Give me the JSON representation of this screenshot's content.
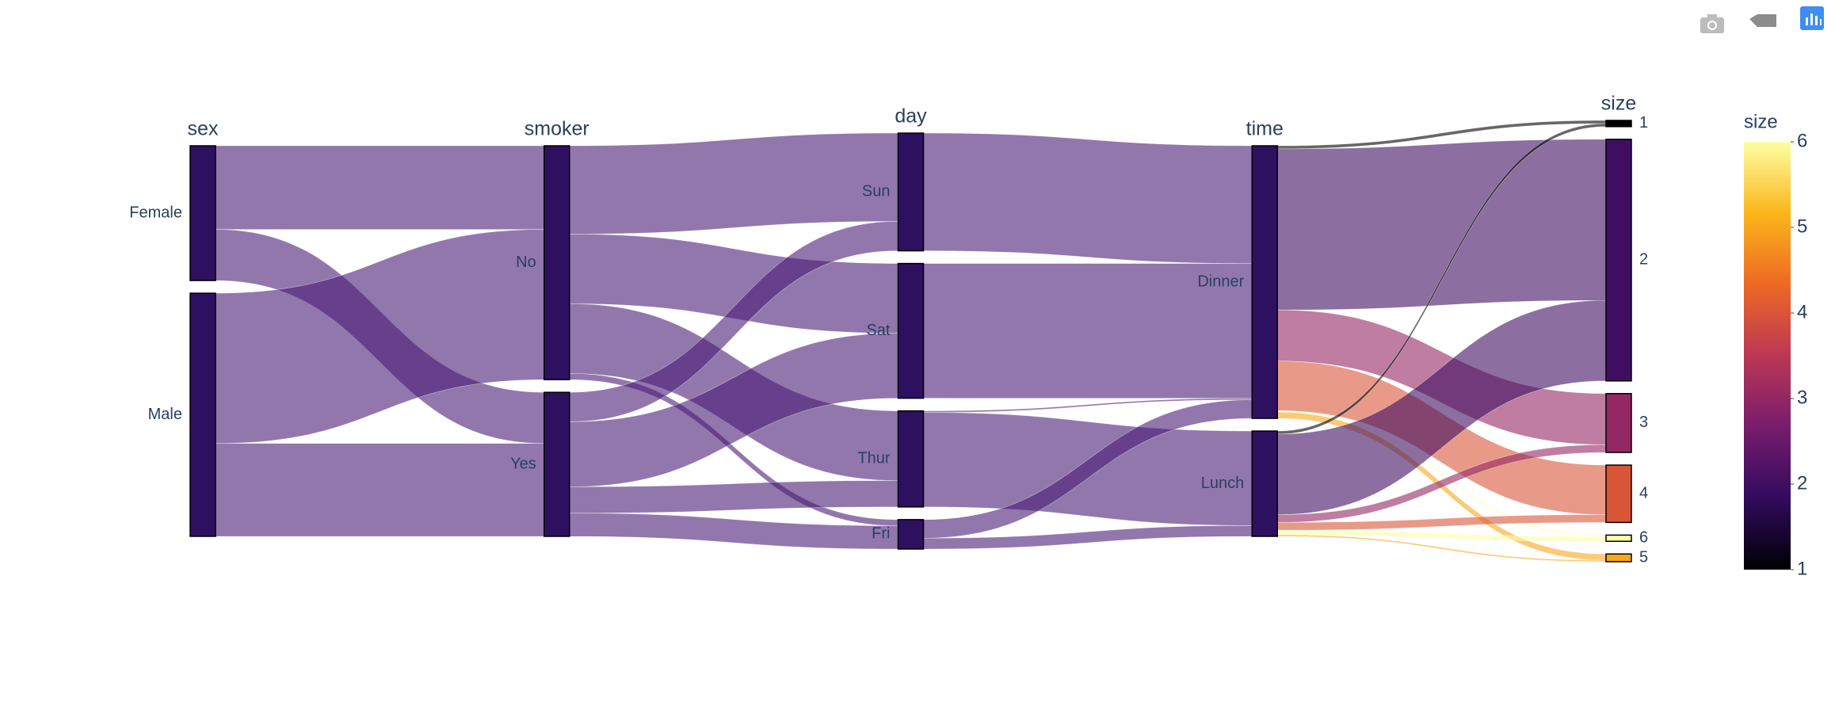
{
  "chart_data": {
    "type": "parcats",
    "dimensions": [
      {
        "label": "sex",
        "categories": [
          "Female",
          "Male"
        ],
        "counts": [
          87,
          157
        ]
      },
      {
        "label": "smoker",
        "categories": [
          "No",
          "Yes"
        ],
        "counts": [
          151,
          93
        ]
      },
      {
        "label": "day",
        "categories": [
          "Sun",
          "Sat",
          "Thur",
          "Fri"
        ],
        "counts": [
          76,
          87,
          62,
          19
        ]
      },
      {
        "label": "time",
        "categories": [
          "Dinner",
          "Lunch"
        ],
        "counts": [
          176,
          68
        ]
      },
      {
        "label": "size",
        "categories": [
          1,
          2,
          3,
          4,
          6,
          5
        ],
        "counts": [
          4,
          156,
          38,
          37,
          4,
          5
        ]
      }
    ],
    "flows": [
      [
        [
          54,
          33
        ],
        [
          97,
          60
        ]
      ],
      [
        [
          57,
          45,
          45,
          4
        ],
        [
          19,
          42,
          17,
          15
        ]
      ],
      [
        [
          76,
          0
        ],
        [
          87,
          0
        ],
        [
          1,
          61
        ],
        [
          12,
          7
        ]
      ],
      [
        [
          2,
          104,
          33,
          32,
          1,
          4
        ],
        [
          2,
          52,
          5,
          5,
          3,
          1
        ]
      ]
    ],
    "bar_color": "#2d1160",
    "link_color": "#4a1c74",
    "colorscale": [
      "#000004",
      "#320a5e",
      "#781c6d",
      "#bc3754",
      "#ed6925",
      "#fbb61a",
      "#fcffa4"
    ],
    "colorbar": {
      "title": "size",
      "range": [
        1,
        6
      ],
      "ticks": [
        1,
        2,
        3,
        4,
        5,
        6
      ]
    }
  }
}
